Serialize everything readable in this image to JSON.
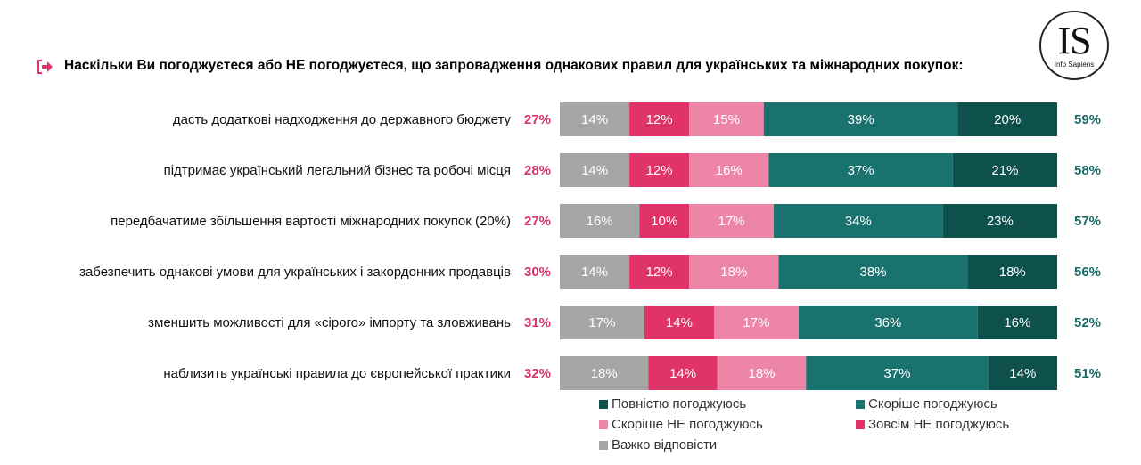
{
  "logo": {
    "mark": "IS",
    "sub": "Info Sapiens"
  },
  "question": "Наскільки Ви погоджуєтеся або НЕ погоджуєтеся, що запровадження однакових правил для українських та міжнародних покупок:",
  "colors": {
    "hard_to_say": "#a6a6a6",
    "fully_disagree": "#e03368",
    "rather_disagree": "#ed86a6",
    "rather_agree": "#1a726e",
    "fully_agree": "#0e504c",
    "neg_total_text": "#d9326a",
    "pos_total_text": "#1a6b66",
    "arrow": "#e03368"
  },
  "chart_data": {
    "type": "bar",
    "orientation": "horizontal",
    "stacked": true,
    "categories": [
      "дасть додаткові надходження до державного бюджету",
      "підтримає український легальний бізнес та робочі місця",
      "передбачатиме збільшення вартості міжнародних покупок (20%)",
      "забезпечить однакові умови для українських і закордонних продавців",
      "зменшить можливості для «сірого» імпорту та зловживань",
      "наблизить українські правила до європейської практики"
    ],
    "series": [
      {
        "key": "hard_to_say",
        "name": "Важко відповісти",
        "values": [
          14,
          14,
          16,
          14,
          17,
          18
        ]
      },
      {
        "key": "fully_disagree",
        "name": "Зовсім НЕ погоджуюсь",
        "values": [
          12,
          12,
          10,
          12,
          14,
          14
        ]
      },
      {
        "key": "rather_disagree",
        "name": "Скоріше НЕ погоджуюсь",
        "values": [
          15,
          16,
          17,
          18,
          17,
          18
        ]
      },
      {
        "key": "rather_agree",
        "name": "Скоріше погоджуюсь",
        "values": [
          39,
          37,
          34,
          38,
          36,
          37
        ]
      },
      {
        "key": "fully_agree",
        "name": "Повністю погоджуюсь",
        "values": [
          20,
          21,
          23,
          18,
          16,
          14
        ]
      }
    ],
    "disagree_totals": [
      27,
      28,
      27,
      30,
      31,
      32
    ],
    "agree_totals": [
      59,
      58,
      57,
      56,
      52,
      51
    ],
    "unit": "%"
  },
  "legend": [
    {
      "label": "Повністю погоджуюсь",
      "color_key": "fully_agree"
    },
    {
      "label": "Скоріше погоджуюсь",
      "color_key": "rather_agree"
    },
    {
      "label": "Скоріше НЕ погоджуюсь",
      "color_key": "rather_disagree"
    },
    {
      "label": "Зовсім НЕ погоджуюсь",
      "color_key": "fully_disagree"
    },
    {
      "label": "Важко відповісти",
      "color_key": "hard_to_say"
    }
  ]
}
